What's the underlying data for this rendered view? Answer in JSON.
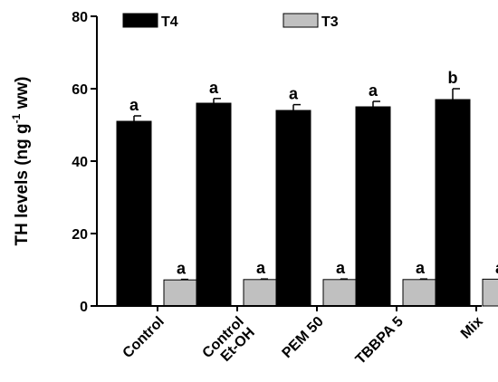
{
  "chart_data": {
    "type": "bar",
    "categories": [
      [
        "Control"
      ],
      [
        "Control",
        "Et-OH"
      ],
      [
        "PEM 50"
      ],
      [
        "TBBPA 5"
      ],
      [
        "Mix"
      ]
    ],
    "series": [
      {
        "name": "T4",
        "color": "#000000",
        "values": [
          51,
          56,
          54,
          55,
          57
        ],
        "errors": [
          1.5,
          1.3,
          1.6,
          1.5,
          3.0
        ],
        "sig": [
          "a",
          "a",
          "a",
          "a",
          "b"
        ]
      },
      {
        "name": "T3",
        "color": "#c0c0c0",
        "values": [
          7.2,
          7.3,
          7.3,
          7.3,
          7.4
        ],
        "errors": [
          0.15,
          0.15,
          0.15,
          0.15,
          0.15
        ],
        "sig": [
          "a",
          "a",
          "a",
          "a",
          "a"
        ]
      }
    ],
    "ylabel": {
      "main": "TH levels (ng g",
      "sup": "-1",
      "rest": " ww)"
    },
    "ylim": [
      0,
      80
    ],
    "yticks": [
      "0",
      "20",
      "40",
      "60",
      "80"
    ],
    "legend": {
      "placement": "top"
    }
  }
}
